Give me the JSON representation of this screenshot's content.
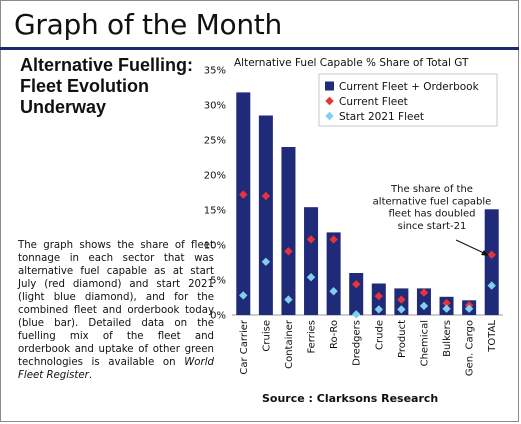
{
  "page_title": "Graph of the Month",
  "headline": "Alternative Fuelling: Fleet Evolution Underway",
  "body": {
    "text": "The graph shows the share of fleet tonnage in each sector that was alternative fuel capable as at start July (red diamond) and start 2021 (light blue diamond), and for the combined fleet and orderbook today (blue bar). Detailed data on the fuelling mix of the fleet and orderbook and uptake of other green technologies is available on ",
    "italic": "World Fleet Register",
    "end": "."
  },
  "source": "Source : Clarksons Research",
  "colors": {
    "bar": "#1f2a78",
    "current": "#e8333a",
    "start2021": "#7fd0ee",
    "title_rule": "#1b2a6b"
  },
  "chart_data": {
    "type": "bar",
    "title": "Alternative Fuel Capable % Share of Total GT",
    "categories": [
      "Car Carrier",
      "Cruise",
      "Container",
      "Ferries",
      "Ro-Ro",
      "Dredgers",
      "Crude",
      "Product",
      "Chemical",
      "Bulkers",
      "Gen. Cargo",
      "TOTAL"
    ],
    "ylim": [
      0,
      35
    ],
    "yticks": [
      0,
      5,
      10,
      15,
      20,
      25,
      30,
      35
    ],
    "ytick_labels": [
      "0%",
      "5%",
      "10%",
      "15%",
      "20%",
      "25%",
      "30%",
      "35%"
    ],
    "series": [
      {
        "name": "Current Fleet + Orderbook",
        "type": "bar",
        "values": [
          31.8,
          28.5,
          24.0,
          15.4,
          11.8,
          6.0,
          4.5,
          3.8,
          3.8,
          2.6,
          2.1,
          15.1
        ]
      },
      {
        "name": "Current Fleet",
        "type": "marker",
        "values": [
          17.2,
          17.0,
          9.1,
          10.8,
          10.8,
          4.4,
          2.7,
          2.2,
          3.2,
          1.7,
          1.4,
          8.6
        ]
      },
      {
        "name": "Start 2021 Fleet",
        "type": "marker",
        "values": [
          2.8,
          7.6,
          2.2,
          5.4,
          3.4,
          0.1,
          0.8,
          0.8,
          1.3,
          0.9,
          0.9,
          4.2
        ]
      }
    ],
    "legend_position": "top-right",
    "annotation": "The share of the alternative fuel capable fleet has doubled since start-21",
    "grid": false
  }
}
